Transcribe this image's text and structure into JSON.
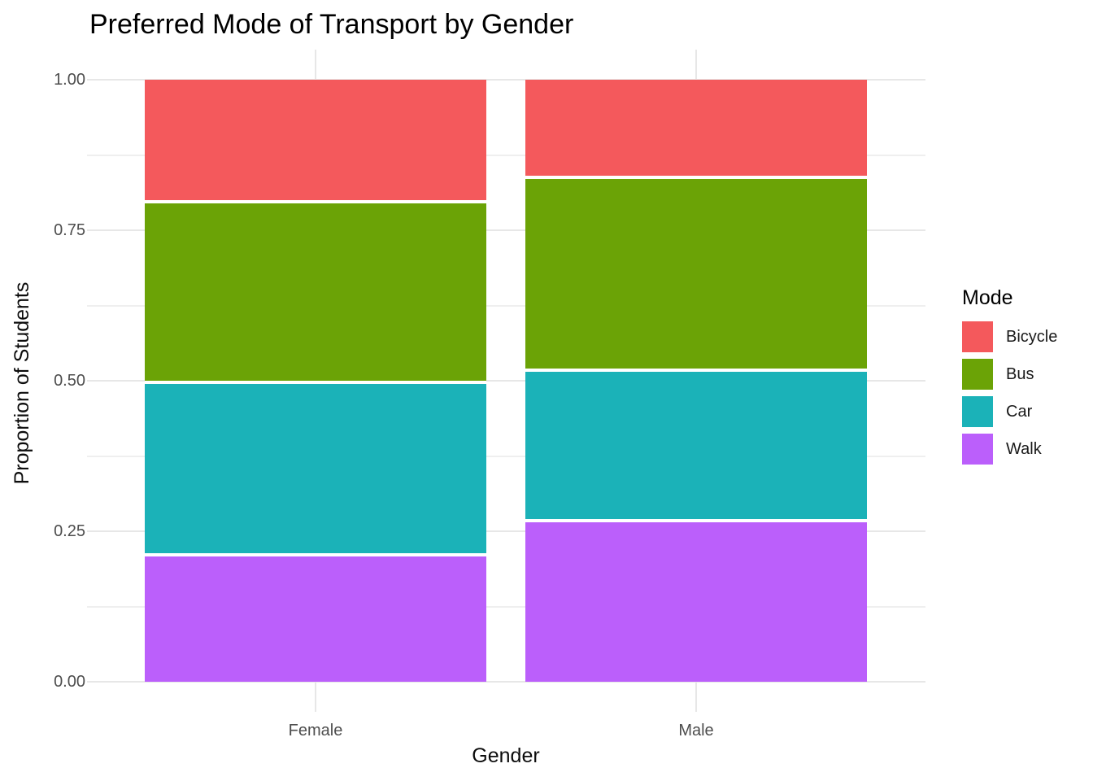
{
  "window": {
    "title": "Preferred Mode of Transport by Gender"
  },
  "chart_data": {
    "type": "bar",
    "subtype": "stacked-proportion",
    "title": "Preferred Mode of Transport by Gender",
    "xlabel": "Gender",
    "ylabel": "Proportion of Students",
    "categories": [
      "Female",
      "Male"
    ],
    "ylim": [
      0,
      1
    ],
    "yticks": [
      0,
      0.25,
      0.5,
      0.75,
      1
    ],
    "ytick_labels": [
      "0.00",
      "0.25",
      "0.50",
      "0.75",
      "1.00"
    ],
    "minor_gridlines": [
      0.125,
      0.375,
      0.625,
      0.875
    ],
    "grid": true,
    "legend_title": "Mode",
    "legend_position": "right",
    "stack_order_note": "first series renders at top of stack",
    "series": [
      {
        "name": "Bicycle",
        "color": "#f4595c",
        "values": [
          0.2,
          0.16
        ]
      },
      {
        "name": "Bus",
        "color": "#6ba306",
        "values": [
          0.3,
          0.32
        ]
      },
      {
        "name": "Car",
        "color": "#1bb2b8",
        "values": [
          0.286,
          0.25
        ]
      },
      {
        "name": "Walk",
        "color": "#bb5ffb",
        "values": [
          0.214,
          0.27
        ]
      }
    ],
    "colors": {
      "grid_major": "#e7e7e7",
      "grid_minor": "#efefef",
      "axis_text": "#4d4d4d",
      "title_text": "#000000",
      "segment_outline": "#ffffff"
    }
  }
}
